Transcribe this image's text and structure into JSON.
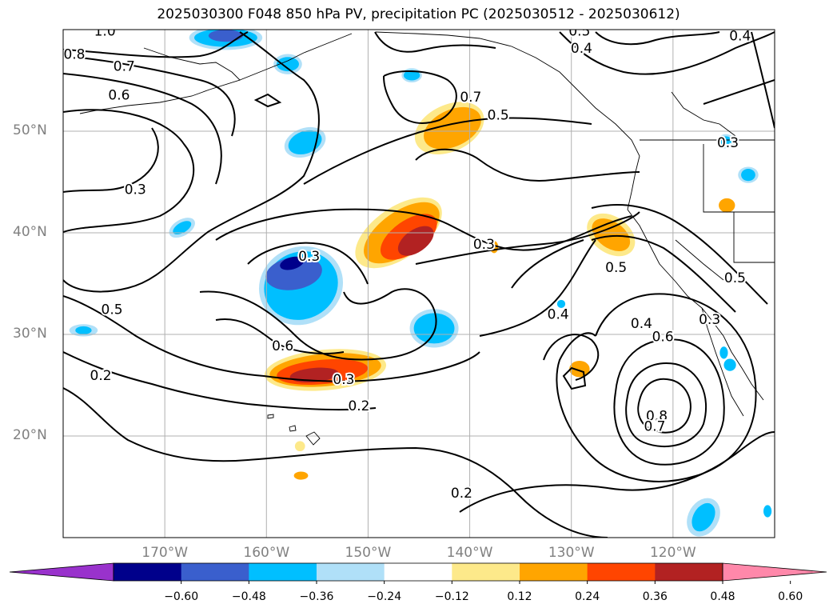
{
  "title": "2025030300 F048 850 hPa PV, precipitation PC (2025030512 - 2025030612)",
  "lat_labels": [
    {
      "text": "50°N",
      "lat": 50
    },
    {
      "text": "40°N",
      "lat": 40
    },
    {
      "text": "30°N",
      "lat": 30
    },
    {
      "text": "20°N",
      "lat": 20
    }
  ],
  "lon_labels": [
    {
      "text": "170°W",
      "lon": -170
    },
    {
      "text": "160°W",
      "lon": -160
    },
    {
      "text": "150°W",
      "lon": -150
    },
    {
      "text": "140°W",
      "lon": -140
    },
    {
      "text": "130°W",
      "lon": -130
    },
    {
      "text": "120°W",
      "lon": -120
    }
  ],
  "extent": {
    "lon_min": -180,
    "lon_max": -110,
    "lat_min": 10,
    "lat_max": 60
  },
  "contour_labels": [
    {
      "text": "1.0",
      "lon": -175.9,
      "lat": 59.9
    },
    {
      "text": "0.8",
      "lon": -178.9,
      "lat": 57.6
    },
    {
      "text": "0.7",
      "lon": -174.0,
      "lat": 56.4
    },
    {
      "text": "0.6",
      "lon": -174.5,
      "lat": 53.6
    },
    {
      "text": "0.7",
      "lon": -139.9,
      "lat": 53.4
    },
    {
      "text": "0.5",
      "lon": -137.2,
      "lat": 51.6
    },
    {
      "text": "0.5",
      "lon": -129.2,
      "lat": 59.9
    },
    {
      "text": "0.4",
      "lon": -129.0,
      "lat": 58.2
    },
    {
      "text": "0.4",
      "lon": -113.4,
      "lat": 59.4
    },
    {
      "text": "0.3",
      "lon": -114.6,
      "lat": 48.9
    },
    {
      "text": "0.3",
      "lon": -172.9,
      "lat": 44.3
    },
    {
      "text": "0.3",
      "lon": -138.6,
      "lat": 38.9
    },
    {
      "text": "0.3",
      "lon": -155.8,
      "lat": 37.7
    },
    {
      "text": "0.5",
      "lon": -175.2,
      "lat": 32.5
    },
    {
      "text": "0.5",
      "lon": -125.6,
      "lat": 36.6
    },
    {
      "text": "0.4",
      "lon": -131.3,
      "lat": 32.0
    },
    {
      "text": "0.4",
      "lon": -123.1,
      "lat": 31.1
    },
    {
      "text": "0.6",
      "lon": -121.0,
      "lat": 29.8
    },
    {
      "text": "0.6",
      "lon": -158.4,
      "lat": 28.9
    },
    {
      "text": "0.3",
      "lon": -152.4,
      "lat": 25.6
    },
    {
      "text": "0.2",
      "lon": -150.9,
      "lat": 23.0
    },
    {
      "text": "0.2",
      "lon": -176.3,
      "lat": 26.0
    },
    {
      "text": "0.8",
      "lon": -121.6,
      "lat": 22.0
    },
    {
      "text": "0.7",
      "lon": -121.8,
      "lat": 21.0
    },
    {
      "text": "0.2",
      "lon": -140.8,
      "lat": 14.4
    },
    {
      "text": "0.5",
      "lon": -113.9,
      "lat": 35.6
    },
    {
      "text": "0.3",
      "lon": -116.4,
      "lat": 31.5
    }
  ],
  "precip_blobs": [
    {
      "color": "#fde98a",
      "lon": -142.0,
      "lat": 50.3,
      "rx": 3.6,
      "ry": 2.3,
      "rot": 25
    },
    {
      "color": "#ffa500",
      "lon": -141.7,
      "lat": 50.3,
      "rx": 3.0,
      "ry": 1.8,
      "rot": 25
    },
    {
      "color": "#fde98a",
      "lon": -147.0,
      "lat": 40.0,
      "rx": 4.9,
      "ry": 2.5,
      "rot": 35
    },
    {
      "color": "#ffa500",
      "lon": -146.7,
      "lat": 40.0,
      "rx": 4.3,
      "ry": 2.1,
      "rot": 35
    },
    {
      "color": "#ff4500",
      "lon": -146.0,
      "lat": 39.6,
      "rx": 3.2,
      "ry": 1.6,
      "rot": 35
    },
    {
      "color": "#b22222",
      "lon": -145.3,
      "lat": 39.2,
      "rx": 2.0,
      "ry": 1.1,
      "rot": 35
    },
    {
      "color": "#fde98a",
      "lon": -154.2,
      "lat": 26.5,
      "rx": 6.0,
      "ry": 2.0,
      "rot": 5
    },
    {
      "color": "#ffa500",
      "lon": -154.2,
      "lat": 26.5,
      "rx": 5.5,
      "ry": 1.6,
      "rot": 5
    },
    {
      "color": "#ff4500",
      "lon": -154.5,
      "lat": 26.3,
      "rx": 4.5,
      "ry": 1.2,
      "rot": 5
    },
    {
      "color": "#b22222",
      "lon": -155.3,
      "lat": 26.0,
      "rx": 2.4,
      "ry": 0.7,
      "rot": 5
    },
    {
      "color": "#fde98a",
      "lon": -126.1,
      "lat": 39.8,
      "rx": 2.6,
      "ry": 1.8,
      "rot": -35
    },
    {
      "color": "#ffa500",
      "lon": -126.1,
      "lat": 39.8,
      "rx": 2.1,
      "ry": 1.3,
      "rot": -35
    },
    {
      "color": "#ffa500",
      "lon": -114.7,
      "lat": 42.7,
      "rx": 0.8,
      "ry": 0.7,
      "rot": 0
    },
    {
      "color": "#ffa500",
      "lon": -129.2,
      "lat": 26.6,
      "rx": 1.0,
      "ry": 0.8,
      "rot": 0
    },
    {
      "color": "#ffa500",
      "lon": -137.6,
      "lat": 38.6,
      "rx": 0.4,
      "ry": 0.6,
      "rot": 0
    },
    {
      "color": "#ffa500",
      "lon": -156.6,
      "lat": 16.1,
      "rx": 0.7,
      "ry": 0.4,
      "rot": 0
    },
    {
      "color": "#fde98a",
      "lon": -156.7,
      "lat": 19.0,
      "rx": 0.5,
      "ry": 0.5,
      "rot": 0
    },
    {
      "color": "#b0e0f8",
      "lon": -156.6,
      "lat": 34.8,
      "rx": 4.2,
      "ry": 3.8,
      "rot": 25
    },
    {
      "color": "#00bfff",
      "lon": -156.6,
      "lat": 34.8,
      "rx": 3.7,
      "ry": 3.3,
      "rot": 25
    },
    {
      "color": "#3a5fcd",
      "lon": -157.3,
      "lat": 36.0,
      "rx": 2.8,
      "ry": 1.6,
      "rot": 10
    },
    {
      "color": "#00008b",
      "lon": -157.5,
      "lat": 37.0,
      "rx": 1.2,
      "ry": 0.6,
      "rot": 15
    },
    {
      "color": "#b0e0f8",
      "lon": -143.5,
      "lat": 30.6,
      "rx": 2.4,
      "ry": 1.9,
      "rot": 0
    },
    {
      "color": "#00bfff",
      "lon": -143.5,
      "lat": 30.6,
      "rx": 2.0,
      "ry": 1.5,
      "rot": 0
    },
    {
      "color": "#b0e0f8",
      "lon": -164.0,
      "lat": 59.2,
      "rx": 3.6,
      "ry": 1.2,
      "rot": 0
    },
    {
      "color": "#00bfff",
      "lon": -164.0,
      "lat": 59.2,
      "rx": 3.1,
      "ry": 0.9,
      "rot": 0
    },
    {
      "color": "#3a5fcd",
      "lon": -164.0,
      "lat": 59.4,
      "rx": 1.7,
      "ry": 0.6,
      "rot": 0
    },
    {
      "color": "#b0e0f8",
      "lon": -157.9,
      "lat": 56.6,
      "rx": 1.4,
      "ry": 1.0,
      "rot": 0
    },
    {
      "color": "#00bfff",
      "lon": -157.9,
      "lat": 56.6,
      "rx": 1.1,
      "ry": 0.7,
      "rot": 0
    },
    {
      "color": "#b0e0f8",
      "lon": -145.7,
      "lat": 55.5,
      "rx": 1.0,
      "ry": 0.7,
      "rot": 0
    },
    {
      "color": "#00bfff",
      "lon": -145.7,
      "lat": 55.5,
      "rx": 0.8,
      "ry": 0.5,
      "rot": 0
    },
    {
      "color": "#b0e0f8",
      "lon": -156.2,
      "lat": 48.9,
      "rx": 2.1,
      "ry": 1.4,
      "rot": 20
    },
    {
      "color": "#00bfff",
      "lon": -156.2,
      "lat": 48.9,
      "rx": 1.7,
      "ry": 1.1,
      "rot": 20
    },
    {
      "color": "#b0e0f8",
      "lon": -168.3,
      "lat": 40.5,
      "rx": 1.4,
      "ry": 0.8,
      "rot": 30
    },
    {
      "color": "#00bfff",
      "lon": -168.3,
      "lat": 40.5,
      "rx": 1.0,
      "ry": 0.5,
      "rot": 30
    },
    {
      "color": "#b0e0f8",
      "lon": -178.0,
      "lat": 30.4,
      "rx": 1.4,
      "ry": 0.6,
      "rot": 0
    },
    {
      "color": "#00bfff",
      "lon": -178.0,
      "lat": 30.4,
      "rx": 0.8,
      "ry": 0.4,
      "rot": 0
    },
    {
      "color": "#b0e0f8",
      "lon": -114.8,
      "lat": 49.0,
      "rx": 0.9,
      "ry": 0.7,
      "rot": 0
    },
    {
      "color": "#00bfff",
      "lon": -114.8,
      "lat": 49.0,
      "rx": 0.6,
      "ry": 0.5,
      "rot": 0
    },
    {
      "color": "#b0e0f8",
      "lon": -112.6,
      "lat": 45.7,
      "rx": 1.0,
      "ry": 0.8,
      "rot": 0
    },
    {
      "color": "#00bfff",
      "lon": -112.6,
      "lat": 45.7,
      "rx": 0.7,
      "ry": 0.6,
      "rot": 0
    },
    {
      "color": "#b0e0f8",
      "lon": -117.0,
      "lat": 12.0,
      "rx": 1.5,
      "ry": 2.0,
      "rot": -30
    },
    {
      "color": "#00bfff",
      "lon": -117.0,
      "lat": 12.0,
      "rx": 1.0,
      "ry": 1.5,
      "rot": -30
    },
    {
      "color": "#00bfff",
      "lon": -114.4,
      "lat": 27.0,
      "rx": 0.6,
      "ry": 0.6,
      "rot": 0
    },
    {
      "color": "#00bfff",
      "lon": -115.0,
      "lat": 28.2,
      "rx": 0.4,
      "ry": 0.6,
      "rot": 0
    },
    {
      "color": "#00bfff",
      "lon": -131.0,
      "lat": 33.0,
      "rx": 0.4,
      "ry": 0.4,
      "rot": 0
    },
    {
      "color": "#00bfff",
      "lon": -110.7,
      "lat": 12.6,
      "rx": 0.4,
      "ry": 0.6,
      "rot": 0
    }
  ],
  "colorbar": {
    "colors": [
      "#9932cc",
      "#00008b",
      "#3a5fcd",
      "#00bfff",
      "#b0e0f8",
      "#ffffff",
      "#fde98a",
      "#ffa500",
      "#ff4500",
      "#b22222",
      "#ff88aa"
    ],
    "ticks": [
      "−0.60",
      "−0.48",
      "−0.36",
      "−0.24",
      "−0.12",
      "0.12",
      "0.24",
      "0.36",
      "0.48",
      "0.60"
    ]
  }
}
